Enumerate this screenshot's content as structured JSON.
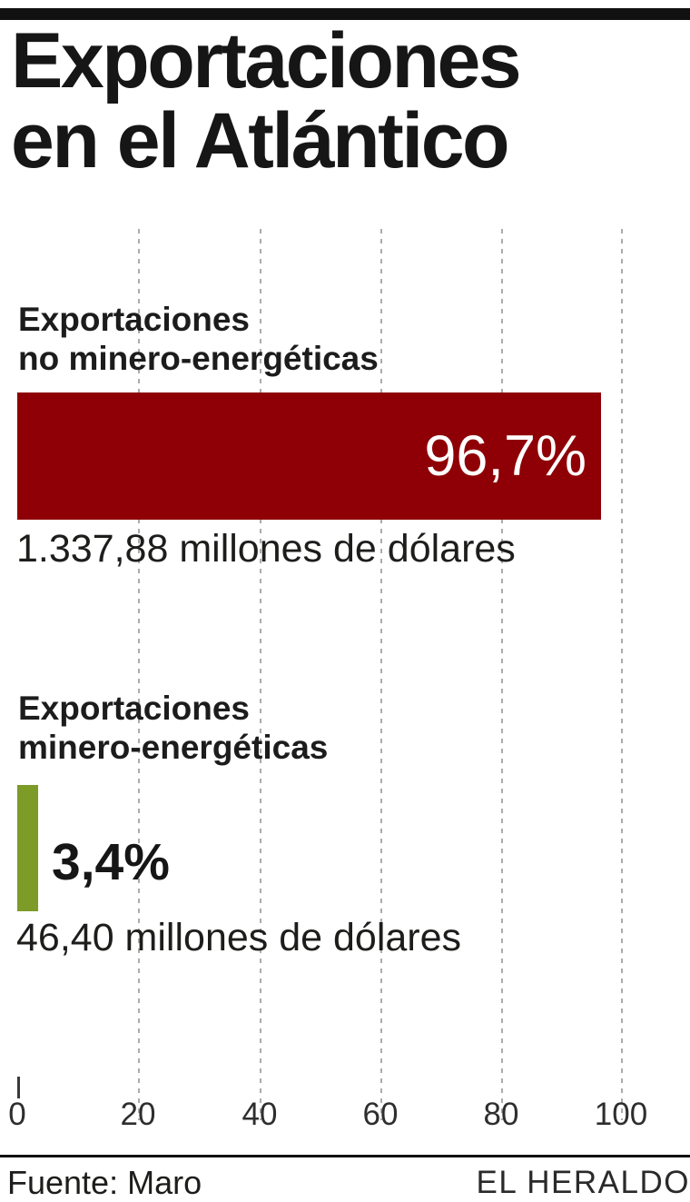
{
  "header": {
    "title_line1": "Exportaciones",
    "title_line2": "en el Atlántico"
  },
  "chart_data": {
    "type": "bar",
    "orientation": "horizontal",
    "title": "Exportaciones en el Atlántico",
    "xlim": [
      0,
      100
    ],
    "x_ticks": [
      "0",
      "20",
      "40",
      "60",
      "80",
      "100"
    ],
    "grid": "dashed-vertical",
    "legend": "none",
    "series": [
      {
        "label_line1": "Exportaciones",
        "label_line2": "no minero-energéticas",
        "value_pct": 96.7,
        "pct_label": "96,7%",
        "amount_label": "1.337,88 millones de dólares",
        "color": "#8e0005"
      },
      {
        "label_line1": "Exportaciones",
        "label_line2": "minero-energéticas",
        "value_pct": 3.4,
        "pct_label": "3,4%",
        "amount_label": "46,40 millones de dólares",
        "color": "#7d9b27"
      }
    ]
  },
  "axis": {
    "ticks": [
      "0",
      "20",
      "40",
      "60",
      "80",
      "100"
    ]
  },
  "footer": {
    "source": "Fuente: Maro",
    "credit": "EL HERALDO"
  },
  "colors": {
    "bar_no_minero": "#8e0005",
    "bar_minero": "#7d9b27",
    "rules": "#111111",
    "gridlines": "#ababab",
    "text": "#1d1d1b",
    "pct_on_bar_text": "#ffffff"
  }
}
